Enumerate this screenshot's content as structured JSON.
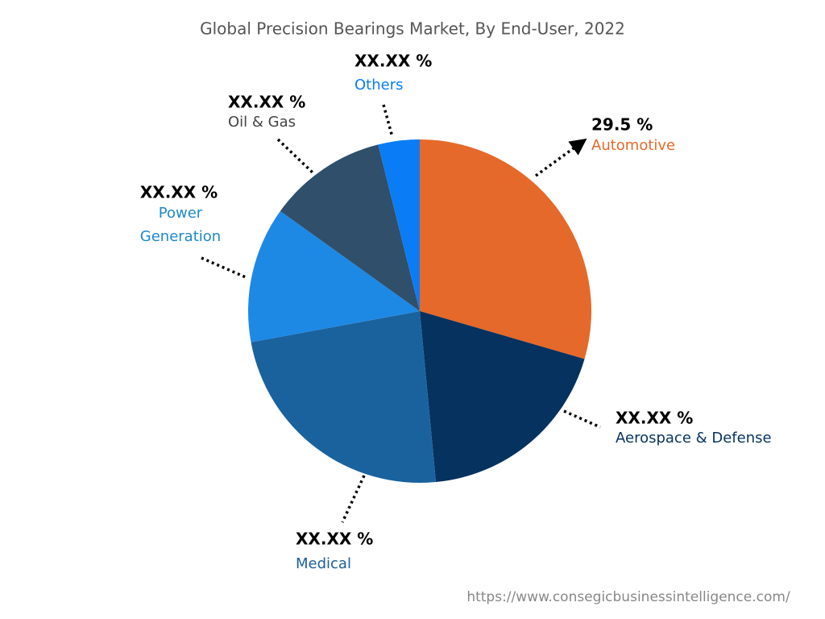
{
  "chart_data": {
    "type": "pie",
    "title": "Global Precision Bearings Market, By End-User, 2022",
    "categories": [
      "Automotive",
      "Aerospace & Defense",
      "Medical",
      "Power Generation",
      "Oil & Gas",
      "Others"
    ],
    "values": [
      29.5,
      19.0,
      23.6,
      12.8,
      11.2,
      3.9
    ],
    "value_labels": [
      "29.5 %",
      "XX.XX %",
      "XX.XX %",
      "XX.XX %",
      "XX.XX %",
      "XX.XX %"
    ],
    "colors": [
      "#e5692a",
      "#05325f",
      "#1a629e",
      "#1e88e5",
      "#2f4f6b",
      "#0a7cf5"
    ],
    "source": "https://www.consegicbusinessintelligence.com/"
  }
}
